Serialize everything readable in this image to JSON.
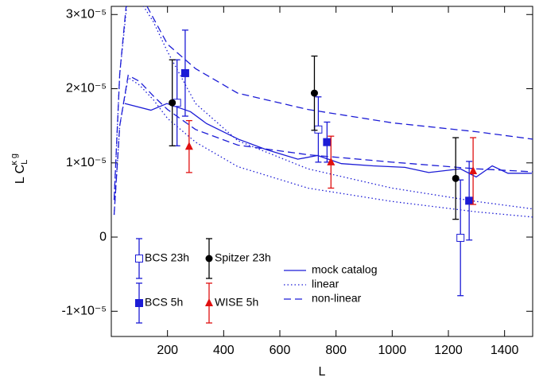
{
  "chart_data": {
    "type": "errorbar",
    "xlabel": "L",
    "ylabel": "L C",
    "ylabel_sub": "L",
    "ylabel_sup": "κ g",
    "xlim": [
      0,
      1500
    ],
    "ylim": [
      -1.34e-05,
      3.11e-05
    ],
    "xticks": [
      200,
      400,
      600,
      800,
      1000,
      1200,
      1400
    ],
    "yticks": [
      {
        "value": -1e-05,
        "label": "-1×10⁻⁵"
      },
      0,
      {
        "value": 1e-05,
        "label": "1×10⁻⁵"
      },
      {
        "value": 2e-05,
        "label": "2×10⁻⁵"
      },
      {
        "value": 3e-05,
        "label": "3×10⁻⁵"
      }
    ],
    "series": [
      {
        "name": "BCS 23h",
        "color": "#1c1cd6",
        "marker": "open-square",
        "x": [
          234,
          737,
          1243
        ],
        "values": [
          1.81e-05,
          1.45e-05,
          -1e-07
        ],
        "errors": [
          5.8e-06,
          4.4e-06,
          7.8e-06
        ]
      },
      {
        "name": "BCS 5h",
        "color": "#1c1cd6",
        "marker": "square",
        "x": [
          263,
          768,
          1274
        ],
        "values": [
          2.21e-05,
          1.28e-05,
          4.9e-06
        ],
        "errors": [
          5.8e-06,
          2.7e-06,
          5.3e-06
        ]
      },
      {
        "name": "Spitzer 23h",
        "color": "#000000",
        "marker": "circle",
        "x": [
          217,
          723,
          1226
        ],
        "values": [
          1.81e-05,
          1.94e-05,
          7.9e-06
        ],
        "errors": [
          5.8e-06,
          5e-06,
          5.5e-06
        ]
      },
      {
        "name": "WISE 5h",
        "color": "#e01010",
        "marker": "triangle",
        "x": [
          277,
          782,
          1288
        ],
        "values": [
          1.22e-05,
          1.01e-05,
          8.9e-06
        ],
        "errors": [
          3.5e-06,
          3.5e-06,
          4.5e-06
        ]
      }
    ],
    "lines": [
      {
        "name": "mock catalog",
        "style": "solid",
        "color": "#1c1cd6",
        "x": [
          48,
          141,
          198,
          282,
          339,
          452,
          551,
          664,
          734,
          819,
          932,
          1045,
          1130,
          1243,
          1299,
          1356,
          1412,
          1497
        ],
        "values": [
          1.8e-05,
          1.71e-05,
          1.8e-05,
          1.69e-05,
          1.53e-05,
          1.32e-05,
          1.18e-05,
          1.05e-05,
          1.1e-05,
          9.9e-06,
          9.6e-06,
          9.4e-06,
          8.7e-06,
          9.2e-06,
          8.1e-06,
          9.6e-06,
          8.6e-06,
          8.6e-06
        ]
      },
      {
        "name": "linear",
        "style": "dotted",
        "color": "#1c1cd6",
        "x": [
          10,
          30,
          60,
          100,
          150,
          200,
          300,
          450,
          700,
          1000,
          1300,
          1500
        ],
        "curves": [
          [
            5e-06,
            2.2e-05,
            3.3e-05,
            3.2e-05,
            2.9e-05,
            2.5e-05,
            1.8e-05,
            1.3e-05,
            9.2e-06,
            6.6e-06,
            4.8e-06,
            3.8e-06
          ],
          [
            3e-06,
            1.5e-05,
            2.15e-05,
            2.05e-05,
            1.85e-05,
            1.6e-05,
            1.28e-05,
            9.5e-06,
            6.6e-06,
            4.8e-06,
            3.4e-06,
            2.7e-06
          ]
        ]
      },
      {
        "name": "non-linear",
        "style": "dashed",
        "color": "#1c1cd6",
        "x": [
          10,
          30,
          60,
          100,
          150,
          200,
          300,
          450,
          700,
          1000,
          1300,
          1500
        ],
        "curves": [
          [
            5e-06,
            2.2e-05,
            3.4e-05,
            3.3e-05,
            2.95e-05,
            2.6e-05,
            2.27e-05,
            1.94e-05,
            1.72e-05,
            1.54e-05,
            1.42e-05,
            1.32e-05
          ],
          [
            3e-06,
            1.5e-05,
            2.18e-05,
            2.1e-05,
            1.9e-05,
            1.72e-05,
            1.45e-05,
            1.24e-05,
            1.11e-05,
            1.01e-05,
            9.2e-06,
            8.8e-06
          ]
        ]
      }
    ]
  }
}
